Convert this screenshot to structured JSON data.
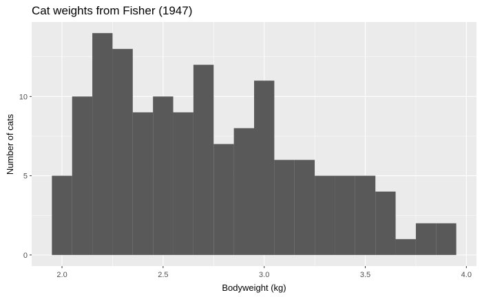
{
  "chart_data": {
    "type": "bar",
    "title": "Cat weights from Fisher (1947)",
    "xlabel": "Bodyweight (kg)",
    "ylabel": "Number of cats",
    "bin_width": 0.1,
    "bins": [
      {
        "start": 1.95,
        "end": 2.05,
        "count": 5
      },
      {
        "start": 2.05,
        "end": 2.15,
        "count": 10
      },
      {
        "start": 2.15,
        "end": 2.25,
        "count": 14
      },
      {
        "start": 2.25,
        "end": 2.35,
        "count": 13
      },
      {
        "start": 2.35,
        "end": 2.45,
        "count": 9
      },
      {
        "start": 2.45,
        "end": 2.55,
        "count": 10
      },
      {
        "start": 2.55,
        "end": 2.65,
        "count": 9
      },
      {
        "start": 2.65,
        "end": 2.75,
        "count": 12
      },
      {
        "start": 2.75,
        "end": 2.85,
        "count": 7
      },
      {
        "start": 2.85,
        "end": 2.95,
        "count": 8
      },
      {
        "start": 2.95,
        "end": 3.05,
        "count": 11
      },
      {
        "start": 3.05,
        "end": 3.15,
        "count": 6
      },
      {
        "start": 3.15,
        "end": 3.25,
        "count": 6
      },
      {
        "start": 3.25,
        "end": 3.35,
        "count": 5
      },
      {
        "start": 3.35,
        "end": 3.45,
        "count": 5
      },
      {
        "start": 3.45,
        "end": 3.55,
        "count": 5
      },
      {
        "start": 3.55,
        "end": 3.65,
        "count": 4
      },
      {
        "start": 3.65,
        "end": 3.75,
        "count": 1
      },
      {
        "start": 3.75,
        "end": 3.85,
        "count": 2
      },
      {
        "start": 3.85,
        "end": 3.95,
        "count": 2
      }
    ],
    "xlim": [
      1.85,
      4.05
    ],
    "ylim": [
      -0.7,
      14.7
    ],
    "x_ticks": [
      "2.0",
      "2.5",
      "3.0",
      "3.5",
      "4.0"
    ],
    "y_ticks": [
      "0",
      "5",
      "10"
    ],
    "grid": true,
    "colors": {
      "bar": "#595959",
      "panel": "#ebebeb",
      "grid_major": "#ffffff"
    }
  }
}
